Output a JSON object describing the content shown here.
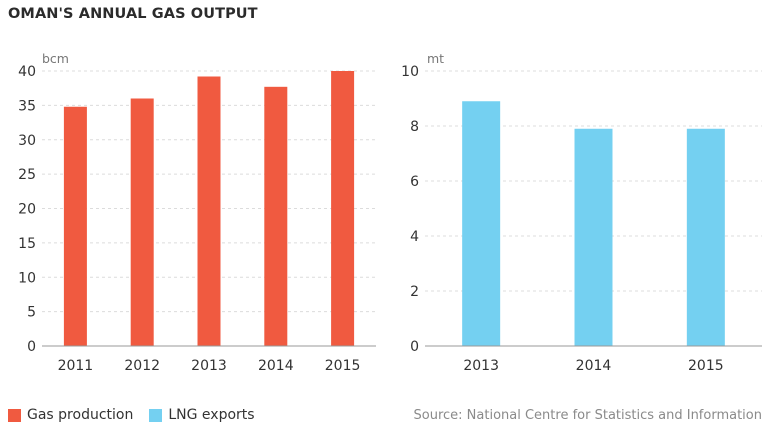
{
  "title": "OMAN'S ANNUAL GAS OUTPUT",
  "source": "Source: National Centre for Statistics and Information",
  "colors": {
    "gas": "#f05a40",
    "lng": "#74d0f1",
    "grid": "#dcdcdc",
    "axis": "#999999"
  },
  "legend": [
    {
      "label": "Gas production",
      "color": "#f05a40"
    },
    {
      "label": "LNG exports",
      "color": "#74d0f1"
    }
  ],
  "chart_data": [
    {
      "type": "bar",
      "ylabel": "bcm",
      "categories": [
        "2011",
        "2012",
        "2013",
        "2014",
        "2015"
      ],
      "series": [
        {
          "name": "Gas production",
          "values": [
            34.8,
            36.0,
            39.2,
            37.7,
            40.0
          ]
        }
      ],
      "ylim": [
        0,
        40
      ],
      "yticks": [
        0,
        5,
        10,
        15,
        20,
        25,
        30,
        35,
        40
      ],
      "grid": true
    },
    {
      "type": "bar",
      "ylabel": "mt",
      "categories": [
        "2013",
        "2014",
        "2015"
      ],
      "series": [
        {
          "name": "LNG exports",
          "values": [
            8.9,
            7.9,
            7.9
          ]
        }
      ],
      "ylim": [
        0,
        10
      ],
      "yticks": [
        0,
        2,
        4,
        6,
        8,
        10
      ],
      "grid": true
    }
  ]
}
